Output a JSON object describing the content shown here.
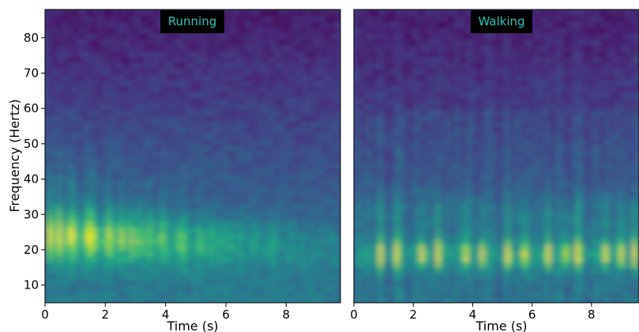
{
  "chart_data": [
    {
      "type": "heatmap",
      "title": "Running",
      "xlabel": "Time (s)",
      "ylabel": "Frequency (Hertz)",
      "xlim": [
        0,
        9.8
      ],
      "ylim": [
        5,
        88
      ],
      "x_ticks": [
        0,
        2,
        4,
        6,
        8
      ],
      "y_ticks": [
        10,
        20,
        30,
        40,
        50,
        60,
        70,
        80
      ],
      "colormap": "viridis",
      "grid": false,
      "dominant_band_hz": [
        18,
        32
      ],
      "dominant_band_time_s": [
        0,
        3.5
      ]
    },
    {
      "type": "heatmap",
      "title": "Walking",
      "xlabel": "Time (s)",
      "ylabel": "",
      "xlim": [
        0,
        9.6
      ],
      "ylim": [
        5,
        88
      ],
      "x_ticks": [
        0,
        2,
        4,
        6,
        8
      ],
      "y_ticks": [],
      "colormap": "viridis",
      "grid": false,
      "dominant_band_hz": [
        15,
        24
      ],
      "burst_times_s": [
        0.9,
        1.45,
        2.3,
        2.85,
        3.75,
        4.3,
        5.2,
        5.75,
        6.55,
        7.15,
        7.55,
        8.45,
        9.0,
        9.45
      ]
    }
  ],
  "title_style": {
    "background": "#000000",
    "color": "#2ec4b6"
  }
}
